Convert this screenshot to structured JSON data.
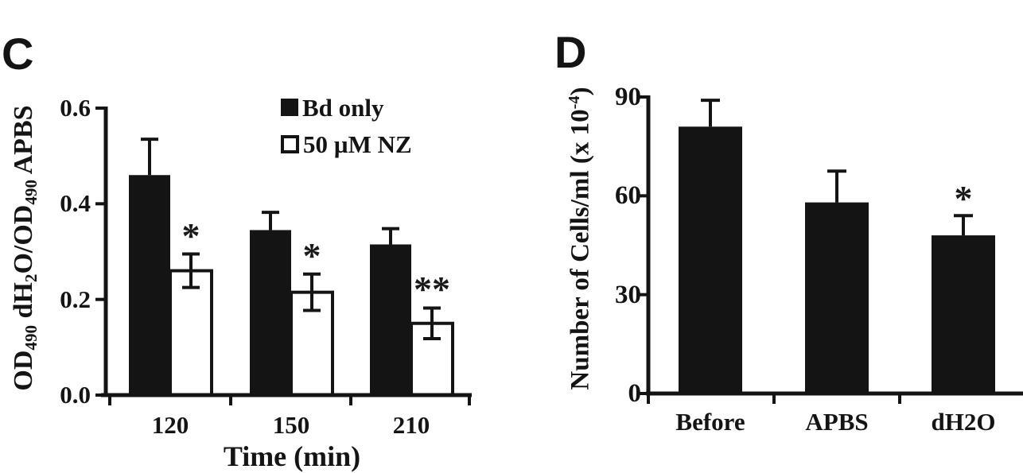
{
  "chart_data": [
    {
      "type": "bar",
      "panel_label": "C",
      "title": "",
      "xlabel": "Time (min)",
      "ylabel": "OD490 dH2O/OD490 APBS",
      "ylabel_parts": [
        {
          "t": "OD"
        },
        {
          "t": "490",
          "style": "sub"
        },
        {
          "t": " dH"
        },
        {
          "t": "2",
          "style": "sub"
        },
        {
          "t": "O/OD"
        },
        {
          "t": "490",
          "style": "sub"
        },
        {
          "t": " APBS"
        }
      ],
      "categories": [
        "120",
        "150",
        "210"
      ],
      "series": [
        {
          "name": "Bd only",
          "fill": "#141414",
          "values": [
            0.46,
            0.345,
            0.315
          ],
          "errors": [
            0.075,
            0.037,
            0.033
          ],
          "error_caps": "upper"
        },
        {
          "name": "50 µM NZ",
          "fill": "#ffffff",
          "values": [
            0.26,
            0.215,
            0.15
          ],
          "errors": [
            0.035,
            0.038,
            0.032
          ],
          "error_caps": "both"
        }
      ],
      "ylim": [
        0,
        0.6
      ],
      "ytick_values": [
        0,
        0.2,
        0.4,
        0.6
      ],
      "ytick_labels": [
        "0.0",
        "0.2",
        "0.4",
        "0.6"
      ],
      "grid": false,
      "legend_position": "top-right",
      "significance": [
        {
          "category": "120",
          "series": "50 µM NZ",
          "marker": "*"
        },
        {
          "category": "150",
          "series": "50 µM NZ",
          "marker": "*"
        },
        {
          "category": "210",
          "series": "50 µM NZ",
          "marker": "**"
        }
      ]
    },
    {
      "type": "bar",
      "panel_label": "D",
      "title": "",
      "xlabel": "",
      "ylabel": "Number of Cells/ml (x 10-4)",
      "ylabel_parts": [
        {
          "t": "Number of Cells/ml (x 10"
        },
        {
          "t": "-4",
          "style": "sup"
        },
        {
          "t": ")"
        }
      ],
      "categories": [
        "Before",
        "APBS",
        "dH2O"
      ],
      "series": [
        {
          "name": "",
          "fill": "#141414",
          "values": [
            81,
            58,
            48
          ],
          "errors": [
            8,
            9.5,
            6
          ],
          "error_caps": "upper"
        }
      ],
      "ylim": [
        0,
        90
      ],
      "ytick_values": [
        0,
        30,
        60,
        90
      ],
      "ytick_labels": [
        "0",
        "30",
        "60",
        "90"
      ],
      "grid": false,
      "legend_position": "none",
      "significance": [
        {
          "category": "dH2O",
          "marker": "*"
        }
      ]
    }
  ]
}
